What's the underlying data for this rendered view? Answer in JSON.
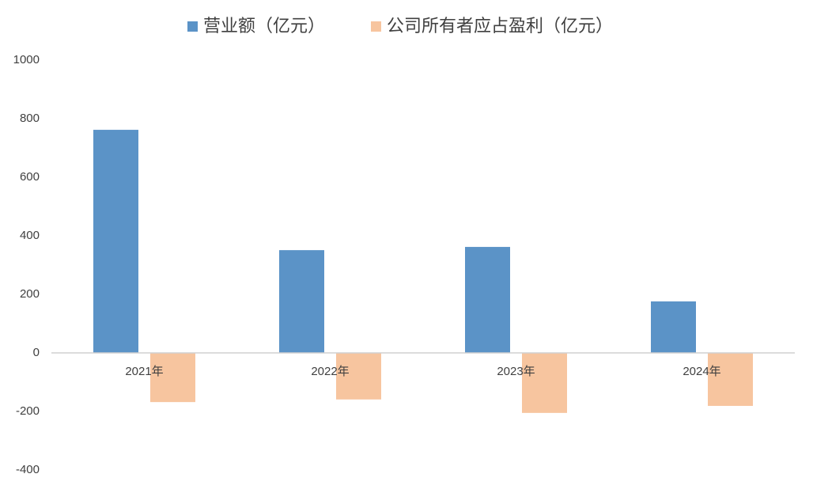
{
  "chart_data": {
    "type": "bar",
    "categories": [
      "2021年",
      "2022年",
      "2023年",
      "2024年"
    ],
    "series": [
      {
        "name": "营业额（亿元）",
        "color": "#5b93c7",
        "values": [
          762,
          351,
          362,
          176
        ]
      },
      {
        "name": "公司所有者应占盈利（亿元）",
        "color": "#f7c59f",
        "values": [
          -168,
          -159,
          -205,
          -181
        ]
      }
    ],
    "ylim": [
      -400,
      1000
    ],
    "yticks": [
      -400,
      -200,
      0,
      200,
      400,
      600,
      800,
      1000
    ],
    "grid": false,
    "legend": "top"
  }
}
